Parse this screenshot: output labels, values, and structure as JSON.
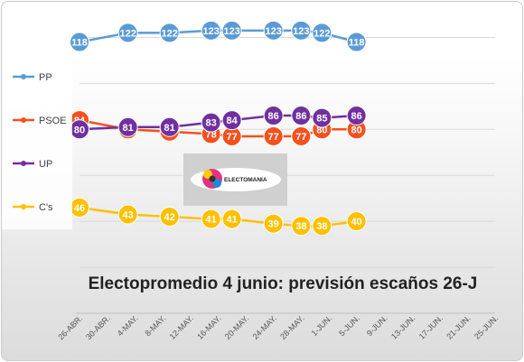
{
  "chart_data": {
    "type": "line",
    "title": "Electopromedio 4 junio: previsión escaños 26-J",
    "xlabel": "",
    "ylabel": "",
    "categories": [
      "26-ABR.",
      "30-ABR.",
      "4-MAY.",
      "8-MAY.",
      "12-MAY.",
      "16-MAY.",
      "20-MAY.",
      "24-MAY.",
      "28-MAY.",
      "1-JUN.",
      "5-JUN.",
      "9-JUN.",
      "13-JUN.",
      "17-JUN.",
      "21-JUN.",
      "25-JUN."
    ],
    "x_start": "2016-04-26",
    "x_end": "2016-06-25",
    "ylim": [
      0,
      130
    ],
    "grid": true,
    "legend_position": "left",
    "series": [
      {
        "name": "PP",
        "color": "#5b9bd5",
        "x": [
          "2016-04-26",
          "2016-05-03",
          "2016-05-09",
          "2016-05-15",
          "2016-05-18",
          "2016-05-24",
          "2016-05-28",
          "2016-05-31",
          "2016-06-05"
        ],
        "values": [
          118,
          122,
          122,
          123,
          123,
          123,
          123,
          122,
          118
        ]
      },
      {
        "name": "PSOE",
        "color": "#f4511e",
        "x": [
          "2016-04-26",
          "2016-05-03",
          "2016-05-09",
          "2016-05-15",
          "2016-05-18",
          "2016-05-24",
          "2016-05-28",
          "2016-05-31",
          "2016-06-05"
        ],
        "values": [
          84,
          80,
          79,
          78,
          77,
          77,
          77,
          80,
          80
        ]
      },
      {
        "name": "UP",
        "color": "#7030a0",
        "x": [
          "2016-04-26",
          "2016-05-03",
          "2016-05-09",
          "2016-05-15",
          "2016-05-18",
          "2016-05-24",
          "2016-05-28",
          "2016-05-31",
          "2016-06-05"
        ],
        "values": [
          80,
          81,
          81,
          83,
          84,
          86,
          86,
          85,
          86
        ]
      },
      {
        "name": "C's",
        "color": "#ffc000",
        "x": [
          "2016-04-26",
          "2016-05-03",
          "2016-05-09",
          "2016-05-15",
          "2016-05-18",
          "2016-05-24",
          "2016-05-28",
          "2016-05-31",
          "2016-06-05"
        ],
        "values": [
          46,
          43,
          42,
          41,
          41,
          39,
          38,
          38,
          40
        ]
      }
    ]
  },
  "logo": {
    "brand_text": "ELECTOMANIA"
  }
}
